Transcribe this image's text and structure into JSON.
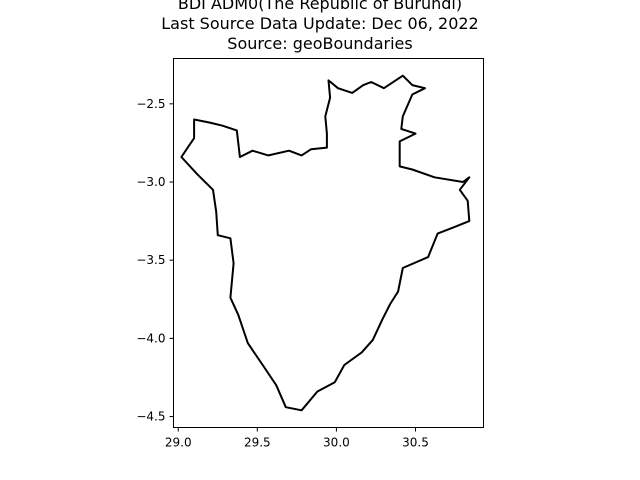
{
  "title": {
    "lines": [
      "BDI ADM0(The Republic of Burundi)",
      "Last Source Data Update: Dec 06, 2022",
      "Source: geoBoundaries"
    ]
  },
  "chart_data": {
    "type": "map",
    "xlim": [
      28.97,
      30.93
    ],
    "ylim": [
      -4.57,
      -2.21
    ],
    "x_ticks": [
      29.0,
      29.5,
      30.0,
      30.5
    ],
    "x_tick_labels": [
      "29.0",
      "29.5",
      "30.0",
      "30.5"
    ],
    "y_ticks": [
      -2.5,
      -3.0,
      -3.5,
      -4.0,
      -4.5
    ],
    "y_tick_labels": [
      "−2.5",
      "−3.0",
      "−3.5",
      "−4.0",
      "−4.5"
    ],
    "grid": false,
    "boundary_color": "#000000",
    "boundary": [
      [
        30.22,
        -2.36
      ],
      [
        30.3,
        -2.4
      ],
      [
        30.42,
        -2.32
      ],
      [
        30.48,
        -2.38
      ],
      [
        30.56,
        -2.4
      ],
      [
        30.48,
        -2.44
      ],
      [
        30.42,
        -2.58
      ],
      [
        30.41,
        -2.66
      ],
      [
        30.5,
        -2.69
      ],
      [
        30.4,
        -2.74
      ],
      [
        30.4,
        -2.9
      ],
      [
        30.48,
        -2.92
      ],
      [
        30.62,
        -2.97
      ],
      [
        30.8,
        -3.0
      ],
      [
        30.84,
        -2.97
      ],
      [
        30.78,
        -3.05
      ],
      [
        30.83,
        -3.12
      ],
      [
        30.84,
        -3.25
      ],
      [
        30.74,
        -3.29
      ],
      [
        30.64,
        -3.33
      ],
      [
        30.58,
        -3.48
      ],
      [
        30.42,
        -3.55
      ],
      [
        30.39,
        -3.7
      ],
      [
        30.34,
        -3.78
      ],
      [
        30.29,
        -3.88
      ],
      [
        30.23,
        -4.01
      ],
      [
        30.16,
        -4.09
      ],
      [
        30.05,
        -4.17
      ],
      [
        29.99,
        -4.28
      ],
      [
        29.88,
        -4.34
      ],
      [
        29.78,
        -4.46
      ],
      [
        29.68,
        -4.44
      ],
      [
        29.62,
        -4.3
      ],
      [
        29.54,
        -4.18
      ],
      [
        29.44,
        -4.03
      ],
      [
        29.38,
        -3.85
      ],
      [
        29.33,
        -3.74
      ],
      [
        29.35,
        -3.52
      ],
      [
        29.33,
        -3.36
      ],
      [
        29.25,
        -3.34
      ],
      [
        29.24,
        -3.19
      ],
      [
        29.22,
        -3.05
      ],
      [
        29.12,
        -2.95
      ],
      [
        29.02,
        -2.84
      ],
      [
        29.06,
        -2.78
      ],
      [
        29.1,
        -2.72
      ],
      [
        29.1,
        -2.6
      ],
      [
        29.2,
        -2.62
      ],
      [
        29.28,
        -2.64
      ],
      [
        29.37,
        -2.67
      ],
      [
        29.39,
        -2.84
      ],
      [
        29.47,
        -2.8
      ],
      [
        29.57,
        -2.83
      ],
      [
        29.7,
        -2.8
      ],
      [
        29.78,
        -2.83
      ],
      [
        29.84,
        -2.79
      ],
      [
        29.94,
        -2.78
      ],
      [
        29.94,
        -2.69
      ],
      [
        29.93,
        -2.58
      ],
      [
        29.96,
        -2.46
      ],
      [
        29.95,
        -2.35
      ],
      [
        30.01,
        -2.4
      ],
      [
        30.1,
        -2.43
      ],
      [
        30.17,
        -2.38
      ],
      [
        30.22,
        -2.36
      ]
    ]
  }
}
